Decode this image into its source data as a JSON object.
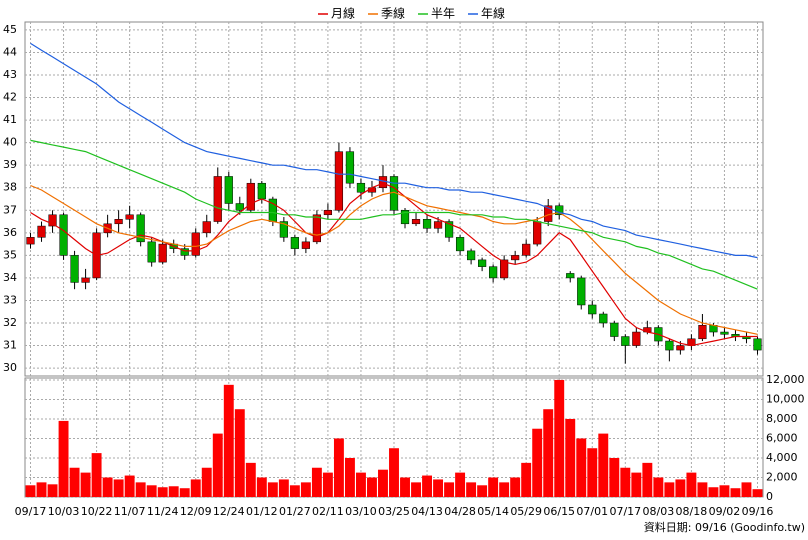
{
  "chart_data": [
    {
      "type": "candlestick",
      "ylim": [
        29.65,
        45.35
      ],
      "yticks": [
        30,
        31,
        32,
        33,
        34,
        35,
        36,
        37,
        38,
        39,
        40,
        41,
        42,
        43,
        44,
        45
      ],
      "grid": true,
      "up_color": "#e00000",
      "down_color": "#00b000",
      "open": [
        35.5,
        35.8,
        36.3,
        36.8,
        35.0,
        33.8,
        34.0,
        36.0,
        36.4,
        36.6,
        36.8,
        35.6,
        34.7,
        35.5,
        35.3,
        35.0,
        36.0,
        36.5,
        38.5,
        37.3,
        37.0,
        38.2,
        37.5,
        36.5,
        35.8,
        35.3,
        35.6,
        36.8,
        37.0,
        39.6,
        38.2,
        37.8,
        38.0,
        38.5,
        37.0,
        36.4,
        36.6,
        36.2,
        36.5,
        35.8,
        35.2,
        34.8,
        34.5,
        34.0,
        34.8,
        35.0,
        35.5,
        36.5,
        37.2,
        34.2,
        34.0,
        32.8,
        32.4,
        32.0,
        31.4,
        31.0,
        31.6,
        31.8,
        31.2,
        30.8,
        31.0,
        31.3,
        31.9,
        31.6,
        31.5,
        31.4,
        31.3
      ],
      "high": [
        36.0,
        36.5,
        37.0,
        36.9,
        35.2,
        34.4,
        36.2,
        36.8,
        37.0,
        37.2,
        36.9,
        35.8,
        35.7,
        35.7,
        35.5,
        36.2,
        36.8,
        38.9,
        38.7,
        37.6,
        38.4,
        38.3,
        37.6,
        36.7,
        35.9,
        35.8,
        37.0,
        37.3,
        40.0,
        39.8,
        38.4,
        38.3,
        39.0,
        38.6,
        37.1,
        36.9,
        36.8,
        36.7,
        36.6,
        35.9,
        35.3,
        34.9,
        34.6,
        35.0,
        35.2,
        35.7,
        36.7,
        37.5,
        37.3,
        34.3,
        34.1,
        33.0,
        32.5,
        32.1,
        31.5,
        31.8,
        32.1,
        31.9,
        31.3,
        31.2,
        31.5,
        32.4,
        32.0,
        31.8,
        31.7,
        31.6,
        31.4
      ],
      "low": [
        35.3,
        35.6,
        36.0,
        34.8,
        33.5,
        33.5,
        33.9,
        35.8,
        36.0,
        36.2,
        35.4,
        34.5,
        34.6,
        35.1,
        34.8,
        34.9,
        35.8,
        36.4,
        37.0,
        36.8,
        36.9,
        37.3,
        36.3,
        35.6,
        35.0,
        35.1,
        35.5,
        36.6,
        36.9,
        38.0,
        37.5,
        37.6,
        37.8,
        36.8,
        36.2,
        36.3,
        36.0,
        36.0,
        35.6,
        35.0,
        34.6,
        34.3,
        33.8,
        33.9,
        34.6,
        34.9,
        35.4,
        36.3,
        36.6,
        33.8,
        32.6,
        32.2,
        31.8,
        31.2,
        30.2,
        30.9,
        31.5,
        31.0,
        30.3,
        30.6,
        30.8,
        31.2,
        31.4,
        31.3,
        31.2,
        31.1,
        30.6
      ],
      "close": [
        35.8,
        36.3,
        36.8,
        35.0,
        33.8,
        34.0,
        36.0,
        36.4,
        36.6,
        36.8,
        35.6,
        34.7,
        35.5,
        35.3,
        35.0,
        36.0,
        36.5,
        38.5,
        37.3,
        37.0,
        38.2,
        37.5,
        36.5,
        35.8,
        35.3,
        35.6,
        36.8,
        37.0,
        39.6,
        38.2,
        37.8,
        38.0,
        38.5,
        37.0,
        36.4,
        36.6,
        36.2,
        36.5,
        35.8,
        35.2,
        34.8,
        34.5,
        34.0,
        34.8,
        35.0,
        35.5,
        36.5,
        37.2,
        36.8,
        34.0,
        32.8,
        32.4,
        32.0,
        31.4,
        31.0,
        31.6,
        31.8,
        31.2,
        30.8,
        31.0,
        31.3,
        31.9,
        31.6,
        31.5,
        31.4,
        31.3,
        30.8
      ],
      "series": [
        {
          "name": "月線",
          "color": "#e00000",
          "values": [
            36.9,
            36.6,
            36.4,
            36.1,
            35.7,
            35.3,
            35.0,
            35.1,
            35.4,
            35.7,
            35.9,
            35.8,
            35.6,
            35.4,
            35.2,
            35.2,
            35.4,
            35.9,
            36.5,
            36.9,
            37.3,
            37.5,
            37.3,
            37.0,
            36.5,
            36.0,
            35.8,
            36.0,
            36.6,
            37.3,
            37.7,
            38.0,
            38.2,
            38.0,
            37.6,
            37.2,
            36.8,
            36.6,
            36.4,
            36.2,
            35.8,
            35.4,
            35.0,
            34.7,
            34.6,
            34.7,
            35.0,
            35.5,
            36.0,
            35.7,
            35.0,
            34.3,
            33.6,
            32.9,
            32.2,
            31.8,
            31.6,
            31.5,
            31.3,
            31.1,
            31.0,
            31.1,
            31.2,
            31.3,
            31.4,
            31.4,
            31.4
          ]
        },
        {
          "name": "季線",
          "color": "#f07000",
          "values": [
            38.1,
            37.9,
            37.6,
            37.3,
            37.0,
            36.7,
            36.4,
            36.2,
            36.0,
            35.9,
            35.8,
            35.7,
            35.6,
            35.5,
            35.4,
            35.4,
            35.5,
            35.8,
            36.1,
            36.3,
            36.5,
            36.6,
            36.5,
            36.4,
            36.2,
            36.0,
            35.9,
            36.0,
            36.3,
            36.8,
            37.2,
            37.5,
            37.7,
            37.8,
            37.6,
            37.4,
            37.2,
            37.1,
            37.0,
            36.9,
            36.8,
            36.7,
            36.5,
            36.4,
            36.4,
            36.5,
            36.6,
            36.8,
            36.9,
            36.6,
            36.2,
            35.7,
            35.2,
            34.7,
            34.2,
            33.8,
            33.4,
            33.0,
            32.7,
            32.4,
            32.2,
            32.0,
            31.9,
            31.8,
            31.7,
            31.6,
            31.5
          ]
        },
        {
          "name": "半年",
          "color": "#20c020",
          "values": [
            40.1,
            40.0,
            39.9,
            39.8,
            39.7,
            39.6,
            39.4,
            39.2,
            39.0,
            38.8,
            38.6,
            38.4,
            38.2,
            38.0,
            37.8,
            37.5,
            37.3,
            37.1,
            37.0,
            36.9,
            36.9,
            36.9,
            36.9,
            36.8,
            36.8,
            36.7,
            36.7,
            36.6,
            36.6,
            36.6,
            36.6,
            36.7,
            36.8,
            36.8,
            36.9,
            36.9,
            36.9,
            36.9,
            36.9,
            36.8,
            36.8,
            36.8,
            36.7,
            36.7,
            36.6,
            36.6,
            36.5,
            36.4,
            36.3,
            36.2,
            36.1,
            36.0,
            35.8,
            35.7,
            35.6,
            35.4,
            35.3,
            35.1,
            35.0,
            34.8,
            34.6,
            34.4,
            34.3,
            34.1,
            33.9,
            33.7,
            33.5
          ]
        },
        {
          "name": "年線",
          "color": "#2060e0",
          "values": [
            44.4,
            44.1,
            43.8,
            43.5,
            43.2,
            42.9,
            42.6,
            42.2,
            41.8,
            41.5,
            41.2,
            40.9,
            40.6,
            40.3,
            40.0,
            39.8,
            39.6,
            39.5,
            39.4,
            39.3,
            39.2,
            39.1,
            39.0,
            39.0,
            38.9,
            38.8,
            38.8,
            38.7,
            38.6,
            38.6,
            38.5,
            38.4,
            38.3,
            38.2,
            38.2,
            38.1,
            38.0,
            38.0,
            37.9,
            37.9,
            37.8,
            37.8,
            37.7,
            37.6,
            37.5,
            37.4,
            37.3,
            37.1,
            36.9,
            36.8,
            36.6,
            36.5,
            36.3,
            36.2,
            36.1,
            35.9,
            35.8,
            35.7,
            35.6,
            35.5,
            35.4,
            35.3,
            35.2,
            35.1,
            35.0,
            35.0,
            34.9
          ]
        }
      ]
    },
    {
      "type": "bar",
      "color": "#ff0000",
      "ylim": [
        0,
        12200
      ],
      "yticks": [
        0,
        {
          "value": 2000,
          "label": "2,000"
        },
        {
          "value": 4000,
          "label": "4,000"
        },
        {
          "value": 6000,
          "label": "6,000"
        },
        {
          "value": 8000,
          "label": "8,000"
        },
        {
          "value": 10000,
          "label": "10,000"
        },
        {
          "value": 12000,
          "label": "12,000"
        }
      ],
      "grid": true,
      "categories": [
        "09/17",
        null,
        null,
        "10/03",
        null,
        null,
        "10/22",
        null,
        null,
        "11/07",
        null,
        null,
        "11/24",
        null,
        null,
        "12/09",
        null,
        null,
        "12/24",
        null,
        null,
        "01/12",
        null,
        null,
        "01/27",
        null,
        null,
        "02/11",
        null,
        null,
        "03/10",
        null,
        null,
        "03/25",
        null,
        null,
        "04/13",
        null,
        null,
        "04/28",
        null,
        null,
        "05/14",
        null,
        null,
        "05/29",
        null,
        null,
        "06/15",
        null,
        null,
        "07/01",
        null,
        null,
        "07/17",
        null,
        null,
        "08/03",
        null,
        null,
        "08/18",
        null,
        null,
        "09/02",
        null,
        null,
        "09/16"
      ],
      "values": [
        1200,
        1500,
        1300,
        7800,
        3000,
        2500,
        4500,
        2000,
        1800,
        2200,
        1500,
        1200,
        1000,
        1100,
        900,
        1800,
        3000,
        6500,
        11500,
        9000,
        3500,
        2000,
        1500,
        1800,
        1200,
        1500,
        3000,
        2500,
        6000,
        4000,
        2500,
        2000,
        2800,
        5000,
        2000,
        1500,
        2200,
        1800,
        1500,
        2500,
        1500,
        1200,
        2000,
        1500,
        2000,
        3500,
        7000,
        9000,
        12000,
        8000,
        6000,
        5000,
        6500,
        4000,
        3000,
        2500,
        3500,
        2000,
        1500,
        1800,
        2500,
        1500,
        1000,
        1200,
        900,
        1500,
        800
      ],
      "note": "資料日期: 09/16 (Goodinfo.tw)"
    }
  ]
}
